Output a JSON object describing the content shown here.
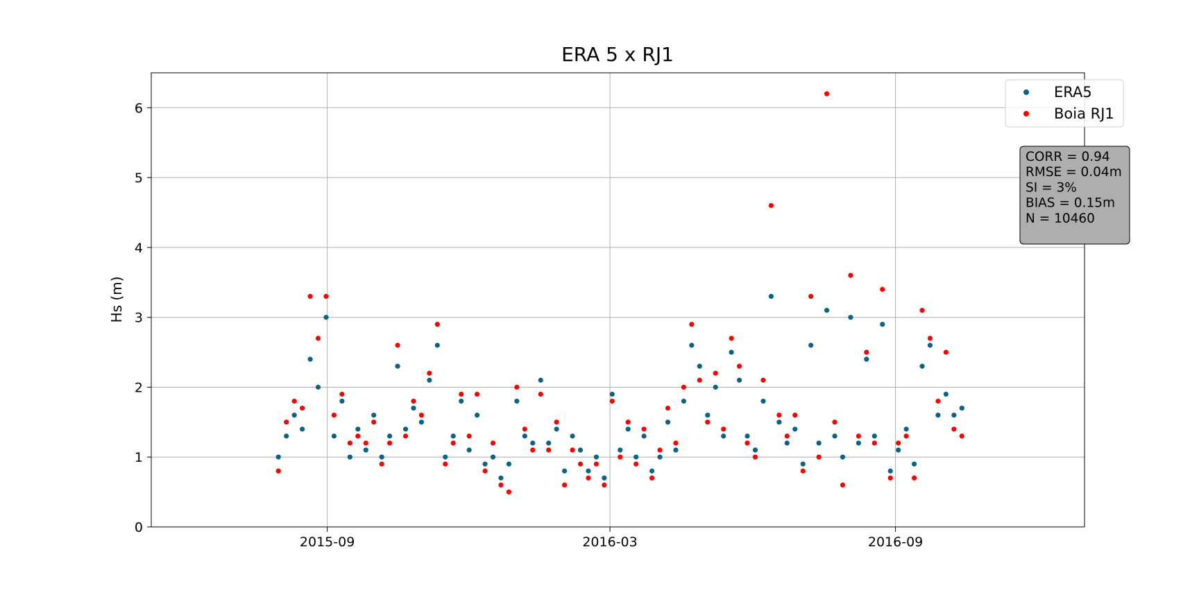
{
  "chart_data": {
    "type": "scatter",
    "title": "ERA 5 x RJ1",
    "y_label": "Hs (m)",
    "x": [
      2015.58,
      2015.594,
      2015.608,
      2015.622,
      2015.636,
      2015.65,
      2015.664,
      2015.678,
      2015.692,
      2015.706,
      2015.72,
      2015.734,
      2015.748,
      2015.762,
      2015.776,
      2015.79,
      2015.804,
      2015.818,
      2015.832,
      2015.846,
      2015.86,
      2015.874,
      2015.888,
      2015.902,
      2015.916,
      2015.93,
      2015.944,
      2015.958,
      2015.972,
      2015.986,
      2016.0,
      2016.014,
      2016.028,
      2016.042,
      2016.056,
      2016.07,
      2016.084,
      2016.098,
      2016.112,
      2016.126,
      2016.14,
      2016.154,
      2016.168,
      2016.182,
      2016.196,
      2016.21,
      2016.224,
      2016.238,
      2016.252,
      2016.266,
      2016.28,
      2016.294,
      2016.308,
      2016.322,
      2016.336,
      2016.35,
      2016.364,
      2016.378,
      2016.392,
      2016.406,
      2016.42,
      2016.434,
      2016.448,
      2016.462,
      2016.476,
      2016.49,
      2016.504,
      2016.518,
      2016.532,
      2016.546,
      2016.56,
      2016.574,
      2016.588,
      2016.602,
      2016.616,
      2016.63,
      2016.644,
      2016.658,
      2016.672,
      2016.686,
      2016.7,
      2016.714,
      2016.728,
      2016.742,
      2016.756,
      2016.77,
      2016.784
    ],
    "series": [
      {
        "name": "ERA5",
        "color": "#0b6384",
        "values": [
          1.0,
          1.3,
          1.6,
          1.4,
          2.4,
          2.0,
          3.0,
          1.3,
          1.8,
          1.0,
          1.4,
          1.1,
          1.6,
          1.0,
          1.3,
          2.3,
          1.4,
          1.7,
          1.5,
          2.1,
          2.6,
          1.0,
          1.3,
          1.8,
          1.1,
          1.6,
          0.9,
          1.0,
          0.7,
          0.9,
          1.8,
          1.3,
          1.2,
          2.1,
          1.2,
          1.4,
          0.8,
          1.3,
          1.1,
          0.8,
          1.0,
          0.7,
          1.9,
          1.1,
          1.4,
          1.0,
          1.3,
          0.8,
          1.0,
          1.5,
          1.1,
          1.8,
          2.6,
          2.3,
          1.6,
          2.0,
          1.3,
          2.5,
          2.1,
          1.3,
          1.1,
          1.8,
          3.3,
          1.5,
          1.2,
          1.4,
          0.9,
          2.6,
          1.2,
          3.1,
          1.3,
          1.0,
          3.0,
          1.2,
          2.4,
          1.3,
          2.9,
          0.8,
          1.1,
          1.4,
          0.9,
          2.3,
          2.6,
          1.6,
          1.9,
          1.6,
          1.7
        ]
      },
      {
        "name": "Boia RJ1",
        "color": "#ff0000",
        "values": [
          0.8,
          1.5,
          1.8,
          1.7,
          3.3,
          2.7,
          3.3,
          1.6,
          1.9,
          1.2,
          1.3,
          1.2,
          1.5,
          0.9,
          1.2,
          2.6,
          1.3,
          1.8,
          1.6,
          2.2,
          2.9,
          0.9,
          1.2,
          1.9,
          1.3,
          1.9,
          0.8,
          1.2,
          0.6,
          0.5,
          2.0,
          1.4,
          1.1,
          1.9,
          1.1,
          1.5,
          0.6,
          1.1,
          0.9,
          0.7,
          0.9,
          0.6,
          1.8,
          1.0,
          1.5,
          0.9,
          1.4,
          0.7,
          1.1,
          1.7,
          1.2,
          2.0,
          2.9,
          2.1,
          1.5,
          2.2,
          1.4,
          2.7,
          2.3,
          1.2,
          1.0,
          2.1,
          4.6,
          1.6,
          1.3,
          1.6,
          0.8,
          3.3,
          1.0,
          6.2,
          1.5,
          0.6,
          3.6,
          1.3,
          2.5,
          1.2,
          3.4,
          0.7,
          1.2,
          1.3,
          0.7,
          3.1,
          2.7,
          1.8,
          2.5,
          1.4,
          1.3
        ]
      }
    ],
    "xlim": [
      2015.356,
      2017.0
    ],
    "xticks": [
      {
        "value": 2015.666,
        "label": "2015-09"
      },
      {
        "value": 2016.164,
        "label": "2016-03"
      },
      {
        "value": 2016.667,
        "label": "2016-09"
      }
    ],
    "ylim": [
      0,
      6.5
    ],
    "yticks": [
      0,
      1,
      2,
      3,
      4,
      5,
      6
    ],
    "grid": true,
    "legend": "upper right",
    "annotations": [
      "CORR = 0.94",
      "RMSE = 0.04m",
      "SI = 3%",
      "BIAS = 0.15m",
      "N = 10460"
    ]
  }
}
